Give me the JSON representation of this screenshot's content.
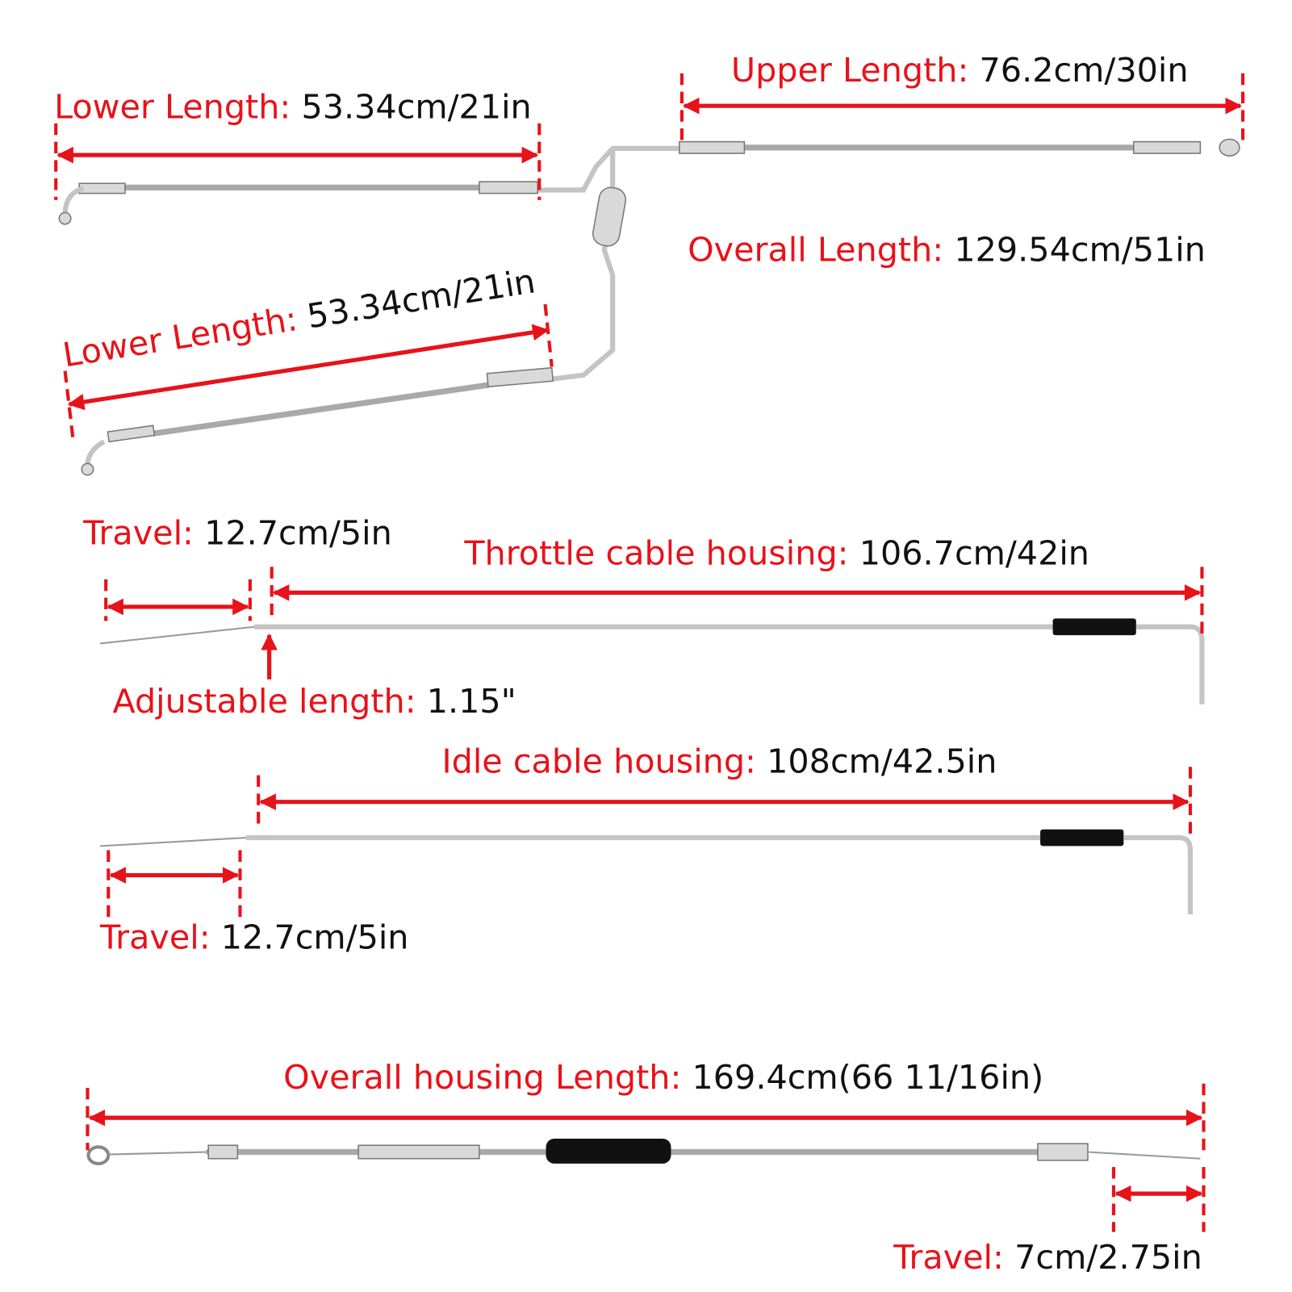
{
  "annotations": [
    {
      "label": "Lower Length:",
      "value": "53.34cm/21in"
    },
    {
      "label": "Upper Length:",
      "value": "76.2cm/30in"
    },
    {
      "label": "Overall Length:",
      "value": "129.54cm/51in"
    },
    {
      "label": "Lower Length:",
      "value": "53.34cm/21in"
    },
    {
      "label": "Travel:",
      "value": "12.7cm/5in"
    },
    {
      "label": "Throttle cable housing:",
      "value": "106.7cm/42in"
    },
    {
      "label": "Adjustable length:",
      "value": "1.15\""
    },
    {
      "label": "Idle cable housing:",
      "value": "108cm/42.5in"
    },
    {
      "label": "Travel:",
      "value": "12.7cm/5in"
    },
    {
      "label": "Overall housing Length:",
      "value": "169.4cm(66 11/16in)"
    },
    {
      "label": "Travel:",
      "value": "7cm/2.75in"
    }
  ]
}
